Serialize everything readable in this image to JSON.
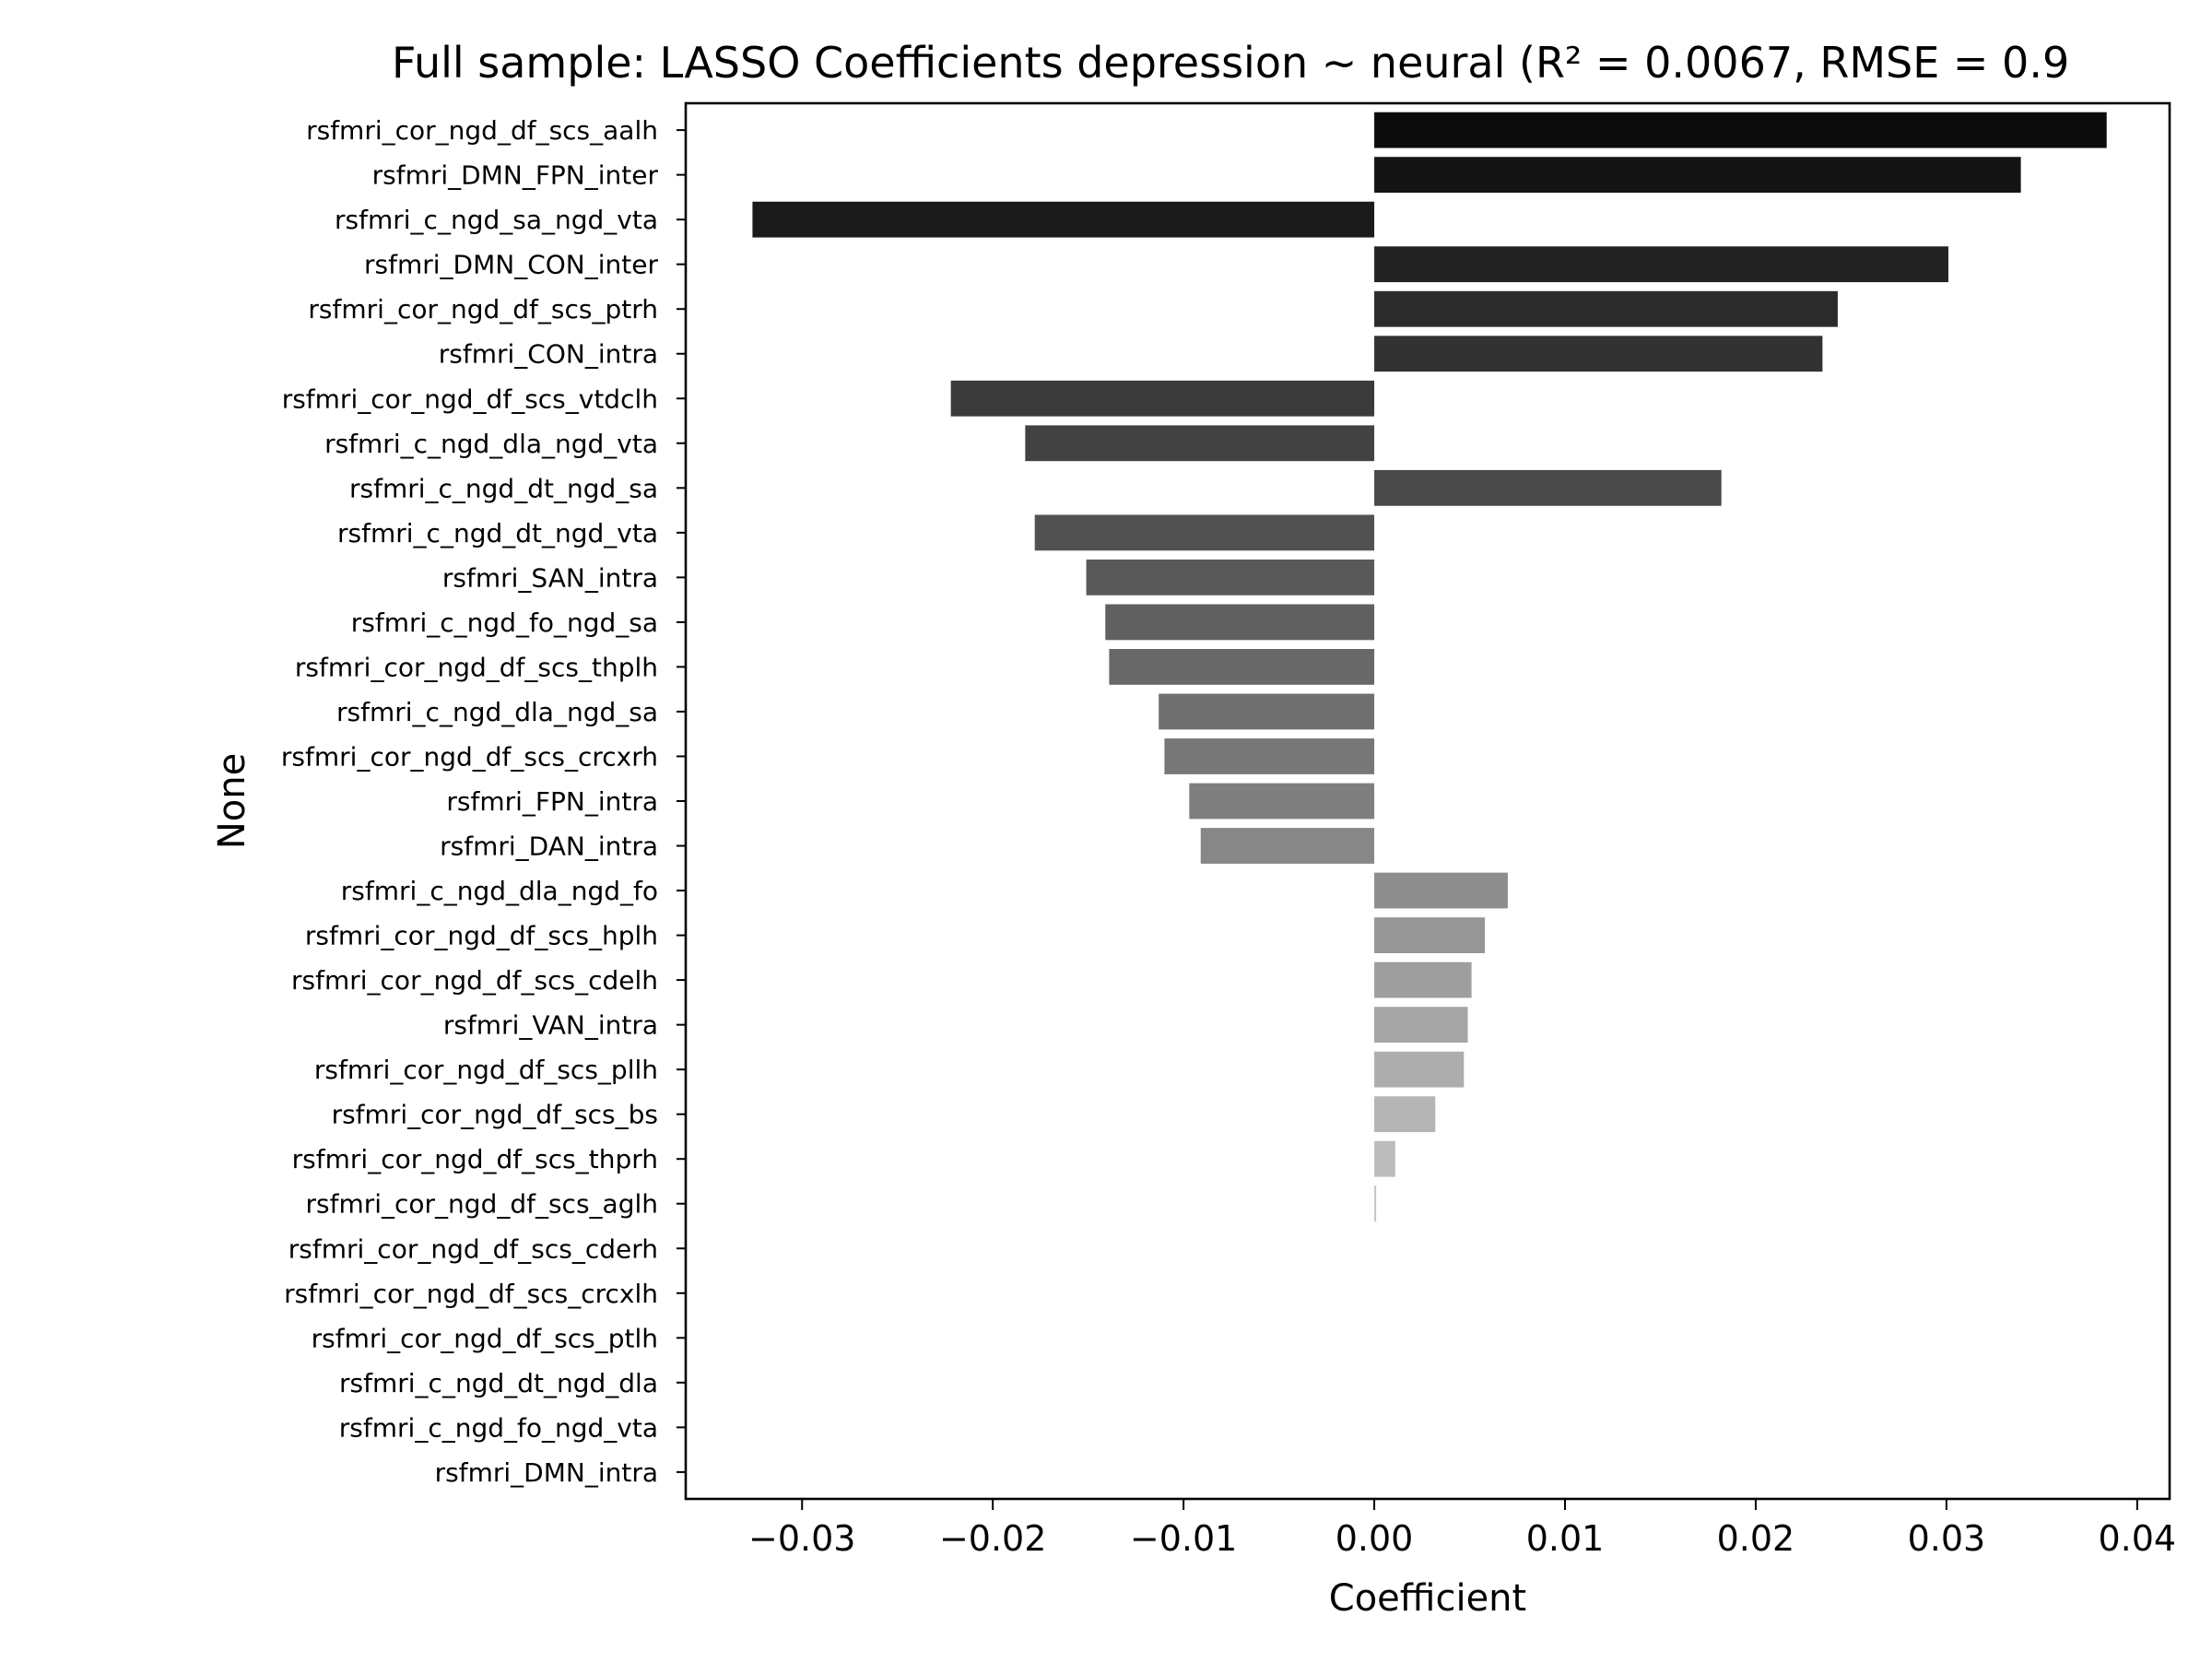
{
  "chart_data": {
    "type": "bar",
    "orientation": "horizontal",
    "title": "Full sample: LASSO Coefficients depression ~ neural (R² = 0.0067, RMSE = 0.9",
    "xlabel": "Coefficient",
    "ylabel": "None",
    "xlim": [
      -0.0361,
      0.0417
    ],
    "xticks": [
      -0.03,
      -0.02,
      -0.01,
      0.0,
      0.01,
      0.02,
      0.03,
      0.04
    ],
    "xtick_labels": [
      "−0.03",
      "−0.02",
      "−0.01",
      "0.00",
      "0.01",
      "0.02",
      "0.03",
      "0.04"
    ],
    "grid": false,
    "legend": "none",
    "bar_color_scale": "grayscale, dark to light by rank",
    "categories": [
      "rsfmri_cor_ngd_df_scs_aalh",
      "rsfmri_DMN_FPN_inter",
      "rsfmri_c_ngd_sa_ngd_vta",
      "rsfmri_DMN_CON_inter",
      "rsfmri_cor_ngd_df_scs_ptrh",
      "rsfmri_CON_intra",
      "rsfmri_cor_ngd_df_scs_vtdclh",
      "rsfmri_c_ngd_dla_ngd_vta",
      "rsfmri_c_ngd_dt_ngd_sa",
      "rsfmri_c_ngd_dt_ngd_vta",
      "rsfmri_SAN_intra",
      "rsfmri_c_ngd_fo_ngd_sa",
      "rsfmri_cor_ngd_df_scs_thplh",
      "rsfmri_c_ngd_dla_ngd_sa",
      "rsfmri_cor_ngd_df_scs_crcxrh",
      "rsfmri_FPN_intra",
      "rsfmri_DAN_intra",
      "rsfmri_c_ngd_dla_ngd_fo",
      "rsfmri_cor_ngd_df_scs_hplh",
      "rsfmri_cor_ngd_df_scs_cdelh",
      "rsfmri_VAN_intra",
      "rsfmri_cor_ngd_df_scs_pllh",
      "rsfmri_cor_ngd_df_scs_bs",
      "rsfmri_cor_ngd_df_scs_thprh",
      "rsfmri_cor_ngd_df_scs_aglh",
      "rsfmri_cor_ngd_df_scs_cderh",
      "rsfmri_cor_ngd_df_scs_crcxlh",
      "rsfmri_cor_ngd_df_scs_ptlh",
      "rsfmri_c_ngd_dt_ngd_dla",
      "rsfmri_c_ngd_fo_ngd_vta",
      "rsfmri_DMN_intra"
    ],
    "values": [
      0.0384,
      0.0339,
      -0.0326,
      0.0301,
      0.0243,
      0.0235,
      -0.0222,
      -0.0183,
      0.0182,
      -0.0178,
      -0.0151,
      -0.0141,
      -0.0139,
      -0.0113,
      -0.011,
      -0.0097,
      -0.0091,
      0.007,
      0.0058,
      0.0051,
      0.0049,
      0.0047,
      0.0032,
      0.0011,
      0.0001,
      0.0,
      0.0,
      0.0,
      0.0,
      0.0,
      0.0
    ]
  }
}
